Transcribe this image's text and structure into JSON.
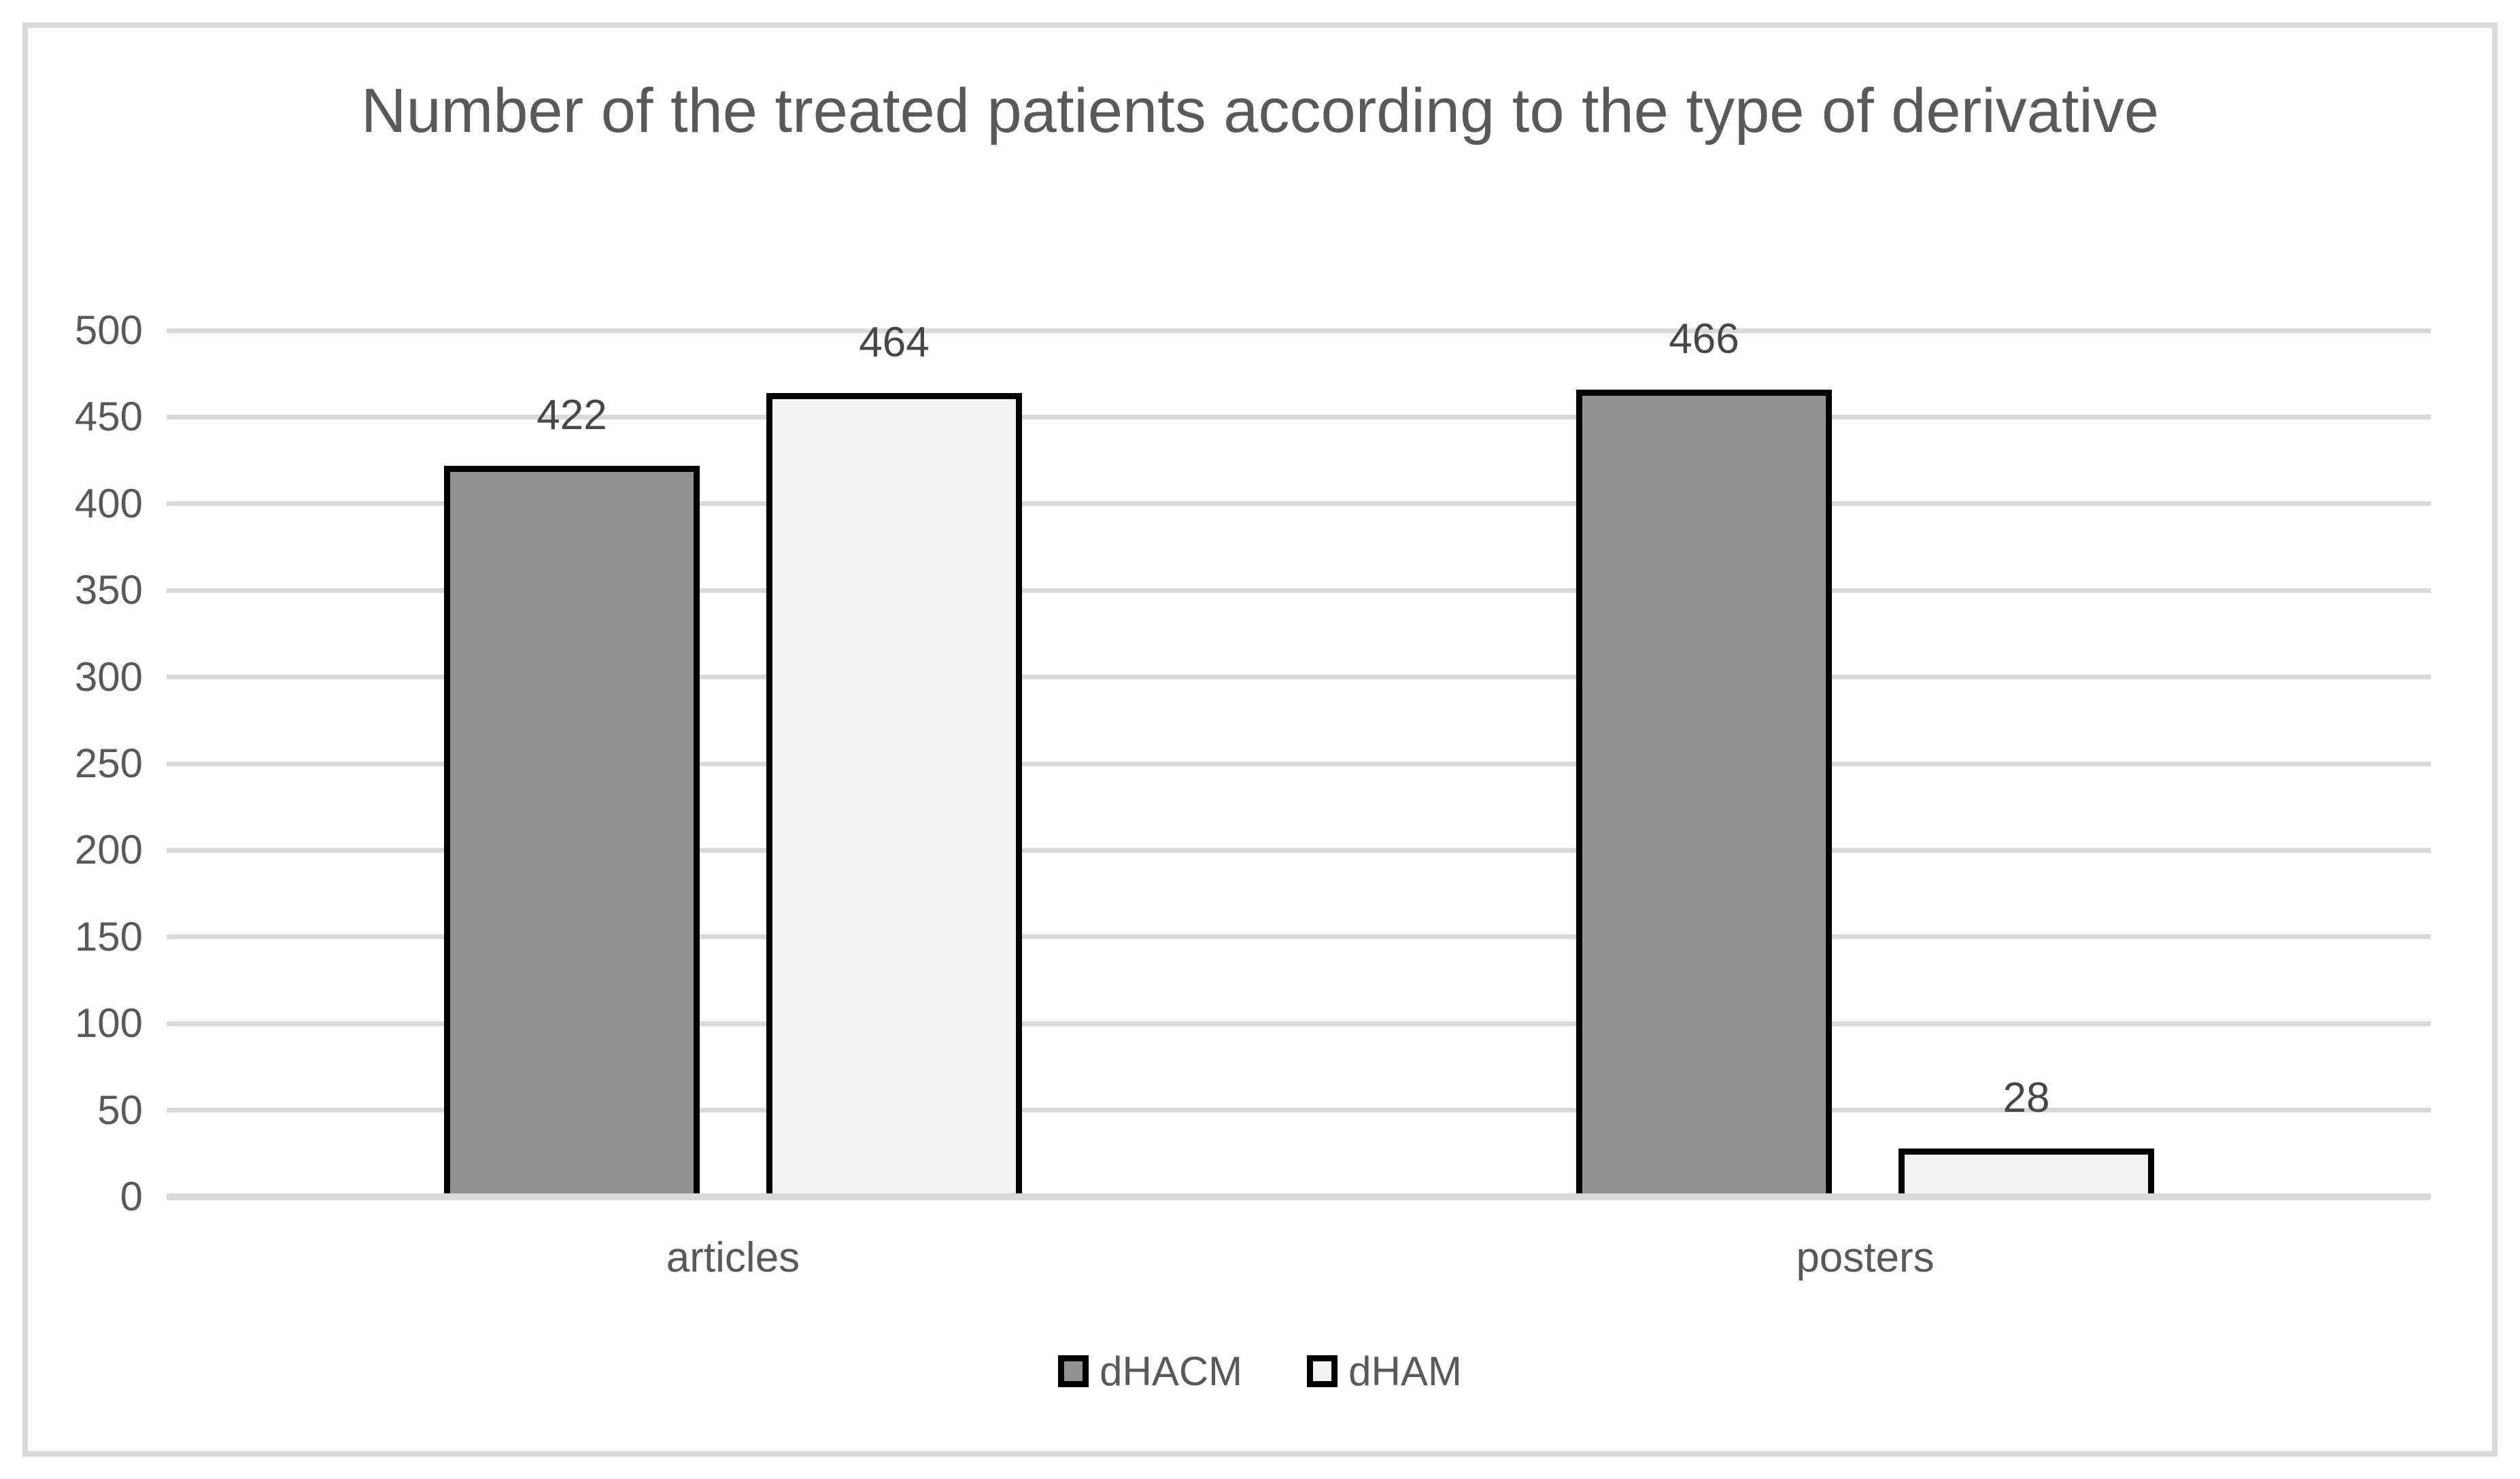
{
  "chart_data": {
    "type": "bar",
    "title": "Number of the treated patients according to the type of derivative",
    "categories": [
      "articles",
      "posters"
    ],
    "series": [
      {
        "name": "dHACM",
        "color": "#929292",
        "values": [
          422,
          466
        ]
      },
      {
        "name": "dHAM",
        "color": "#f2f2f2",
        "values": [
          464,
          28
        ]
      }
    ],
    "xlabel": "",
    "ylabel": "",
    "ylim": [
      0,
      500
    ],
    "yticks": [
      0,
      50,
      100,
      150,
      200,
      250,
      300,
      350,
      400,
      450,
      500
    ],
    "grid": true,
    "legend_position": "bottom",
    "data_labels_shown": true
  },
  "colors": {
    "background": "#ffffff",
    "frame_border": "#d9d9d9",
    "gridline": "#d9d9d9",
    "axis_line": "#d9d9d9",
    "title_text": "#595959",
    "axis_text": "#595959",
    "category_text": "#595959",
    "legend_text": "#595959",
    "data_label_text": "#474747",
    "bar_border": "#000000"
  }
}
